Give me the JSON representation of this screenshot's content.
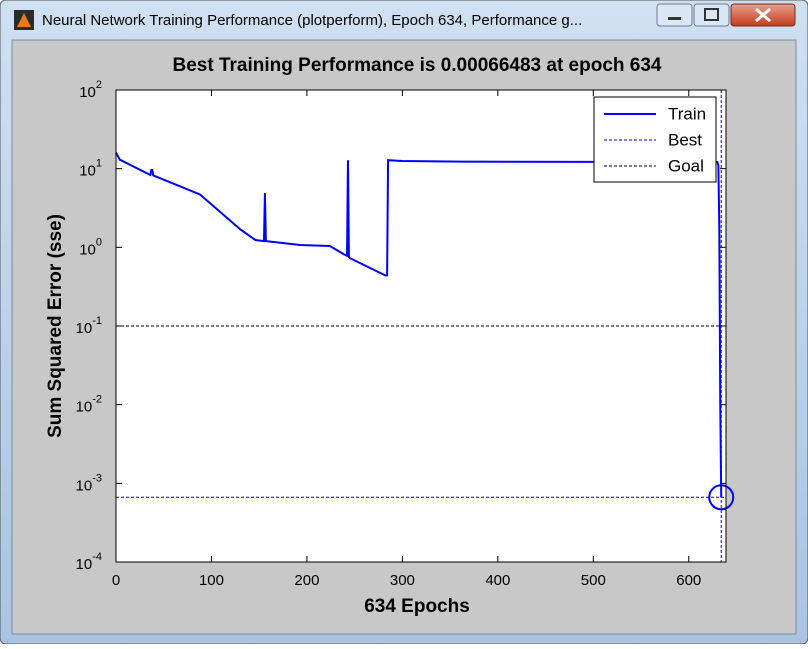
{
  "window": {
    "title": "Neural Network Training Performance (plotperform), Epoch 634, Performance g..."
  },
  "chart_data": {
    "type": "line",
    "title": "Best Training Performance is 0.00066483 at epoch 634",
    "x_label": "634 Epochs",
    "y_label": "Sum Squared Error  (sse)",
    "log_y": true,
    "xlim": [
      0,
      639
    ],
    "ylim": [
      0.0001,
      100
    ],
    "xticks": [
      0,
      100,
      200,
      300,
      400,
      500,
      600
    ],
    "yticks": [
      {
        "value": 100,
        "label": "10",
        "exponent": "2"
      },
      {
        "value": 10,
        "label": "10",
        "exponent": "1"
      },
      {
        "value": 1,
        "label": "10",
        "exponent": "0"
      },
      {
        "value": 0.1,
        "label": "10",
        "exponent": "-1"
      },
      {
        "value": 0.01,
        "label": "10",
        "exponent": "-2"
      },
      {
        "value": 0.001,
        "label": "10",
        "exponent": "-3"
      },
      {
        "value": 0.0001,
        "label": "10",
        "exponent": "-4"
      }
    ],
    "series": [
      {
        "name": "Train",
        "color": "#0000ff",
        "x": [
          0,
          4,
          36,
          37,
          38,
          39,
          88,
          130,
          146,
          155,
          156,
          157,
          193,
          224,
          240,
          242,
          243,
          244,
          245,
          282,
          284,
          285,
          300,
          360,
          500,
          630,
          631,
          632,
          633,
          634
        ],
        "values": [
          16,
          13,
          8.3,
          9.6,
          9.6,
          8.2,
          4.7,
          1.7,
          1.24,
          1.2,
          4.9,
          1.2,
          1.07,
          1.04,
          0.8,
          0.78,
          12.8,
          0.75,
          0.73,
          0.44,
          0.44,
          12.8,
          12.5,
          12.3,
          12.2,
          12.1,
          11,
          1.7,
          0.01,
          0.00066483
        ]
      }
    ],
    "best": {
      "name": "Best",
      "color": "#0000ff",
      "x": 634,
      "value": 0.00066483
    },
    "goal": {
      "name": "Goal",
      "color": "#000000",
      "value": 0.1
    },
    "legend": "upper right"
  }
}
